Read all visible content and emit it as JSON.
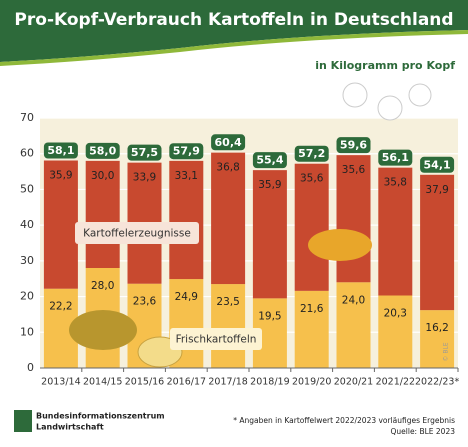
{
  "chart_data": {
    "type": "stacked_bar",
    "title": "Pro-Kopf-Verbrauch Kartoffeln in Deutschland",
    "subtitle": "in Kilogramm pro Kopf",
    "categories": [
      "2013/14",
      "2014/15",
      "2015/16",
      "2016/17",
      "2017/18",
      "2018/19",
      "2019/20",
      "2020/21",
      "2021/22",
      "2022/23*"
    ],
    "series": [
      {
        "name": "Frischkartoffeln",
        "color": "#f6c04c",
        "values": [
          22.2,
          28.0,
          23.6,
          24.9,
          23.5,
          19.5,
          21.6,
          24.0,
          20.3,
          16.2
        ],
        "value_labels": [
          "22,2",
          "28,0",
          "23,6",
          "24,9",
          "23,5",
          "19,5",
          "21,6",
          "24,0",
          "20,3",
          "16,2"
        ]
      },
      {
        "name": "Kartoffelerzeugnisse",
        "color": "#c8492f",
        "values": [
          35.9,
          30.0,
          33.9,
          33.1,
          36.8,
          35.9,
          35.6,
          35.6,
          35.8,
          37.9
        ],
        "value_labels": [
          "35,9",
          "30,0",
          "33,9",
          "33,1",
          "36,8",
          "35,9",
          "35,6",
          "35,6",
          "35,8",
          "37,9"
        ]
      }
    ],
    "totals": [
      58.1,
      58.0,
      57.5,
      57.9,
      60.4,
      55.4,
      57.2,
      59.6,
      56.1,
      54.1
    ],
    "total_labels": [
      "58,1",
      "58,0",
      "57,5",
      "57,9",
      "60,4",
      "55,4",
      "57,2",
      "59,6",
      "56,1",
      "54,1"
    ],
    "total_color": "#2d6a3a",
    "ylim": [
      0,
      70
    ],
    "yticks": [
      0,
      10,
      20,
      30,
      40,
      50,
      60,
      70
    ],
    "grid": true,
    "watermark": "© BLE",
    "footnote": "* Angaben in Kartoffelwert 2022/2023 vorläufiges Ergebnis",
    "source": "Quelle: BLE 2023",
    "publisher": [
      "Bundesinformationszentrum",
      "Landwirtschaft"
    ]
  }
}
